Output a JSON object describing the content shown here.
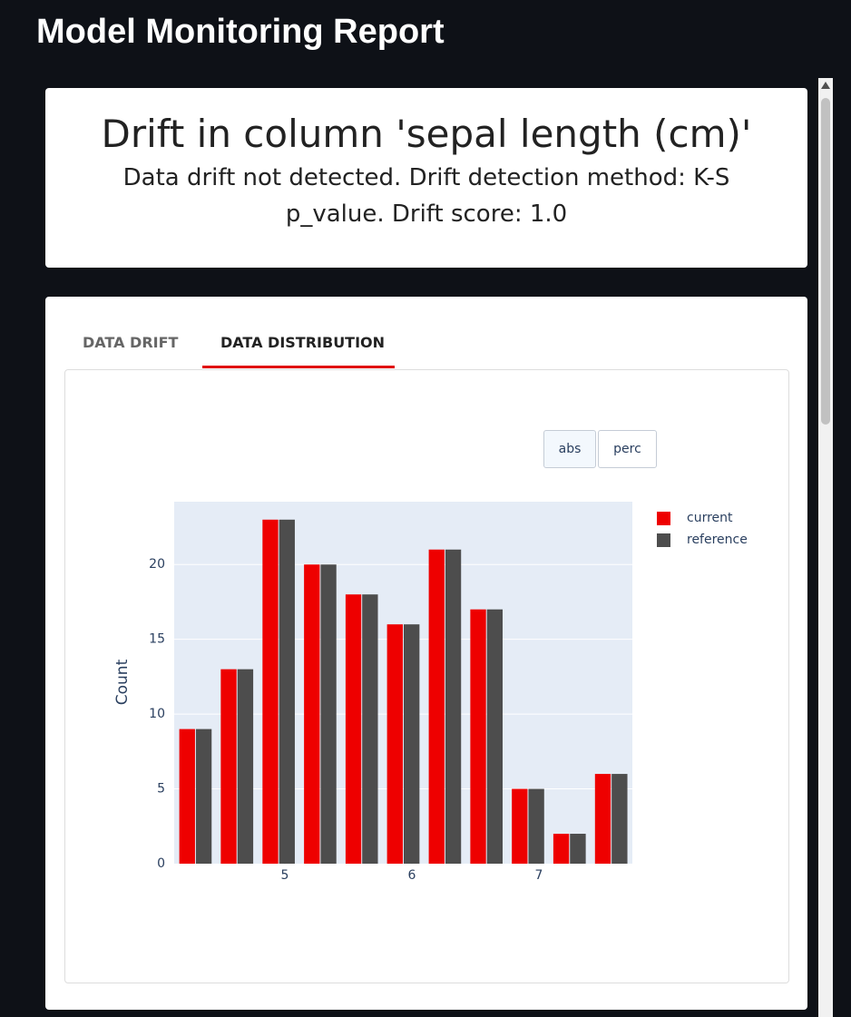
{
  "header": {
    "title": "Model Monitoring Report"
  },
  "card": {
    "title": "Drift in column 'sepal length (cm)'",
    "subtitle": "Data drift not detected. Drift detection method: K-S p_value. Drift score: 1.0"
  },
  "tabs": [
    "DATA DRIFT",
    "DATA DISTRIBUTION"
  ],
  "controls": [
    "abs",
    "perc"
  ],
  "chart_data": {
    "type": "bar",
    "y_label": "Count",
    "x": [
      4.3,
      4.627,
      4.955,
      5.282,
      5.609,
      5.936,
      6.264,
      6.591,
      6.918,
      7.245,
      7.573
    ],
    "series": [
      {
        "name": "current",
        "color": "#ee0000",
        "values": [
          9,
          13,
          23,
          20,
          18,
          16,
          21,
          17,
          5,
          2,
          6
        ]
      },
      {
        "name": "reference",
        "color": "#4d4d4d",
        "values": [
          9,
          13,
          23,
          20,
          18,
          16,
          21,
          17,
          5,
          2,
          6
        ]
      }
    ],
    "xlim": [
      4.129,
      7.736
    ],
    "xticks": [
      5,
      6,
      7
    ],
    "ylim": [
      0,
      24.2
    ],
    "yticks": [
      0,
      5,
      10,
      15,
      20
    ],
    "grid": true,
    "legend": "right"
  }
}
